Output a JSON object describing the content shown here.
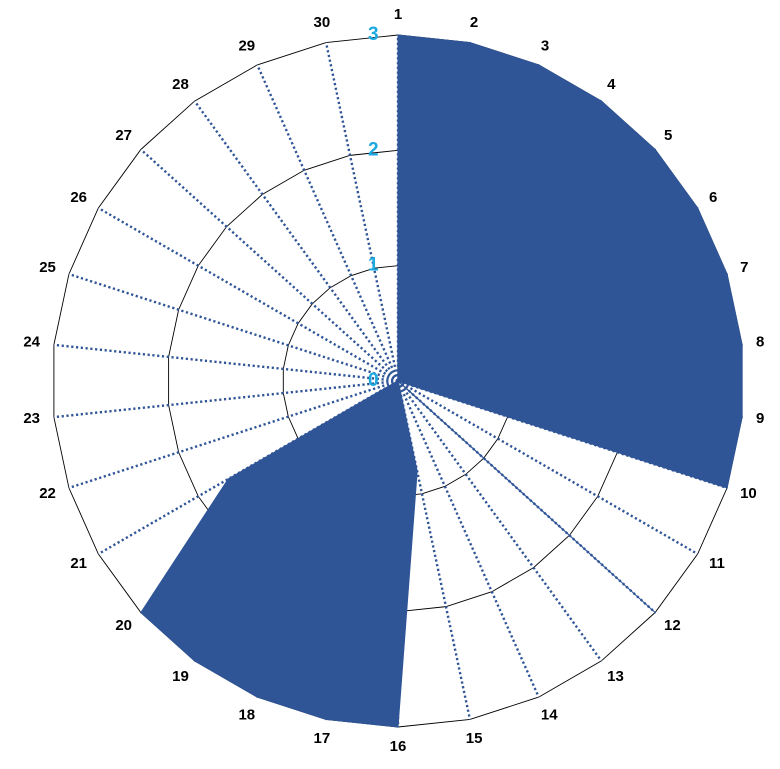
{
  "chart_data": {
    "type": "radar",
    "categories": [
      "1",
      "2",
      "3",
      "4",
      "5",
      "6",
      "7",
      "8",
      "9",
      "10",
      "11",
      "12",
      "13",
      "14",
      "15",
      "16",
      "17",
      "18",
      "19",
      "20",
      "21",
      "22",
      "23",
      "24",
      "25",
      "26",
      "27",
      "28",
      "29",
      "30"
    ],
    "series": [
      {
        "values": [
          3,
          3,
          3,
          3,
          3,
          3,
          3,
          3,
          3,
          3,
          0.01,
          3,
          0.01,
          0.01,
          0.8,
          3,
          3,
          3,
          3,
          3,
          1.7,
          0.01,
          0.01,
          0.01,
          0.01,
          0.01,
          0.01,
          0.01,
          0.01,
          0.01
        ]
      }
    ],
    "radial_ticks": [
      "0",
      "1",
      "2",
      "3"
    ],
    "rmin": 0,
    "rmax": 3,
    "series_color": "#2F5597",
    "spoke_color": "#2F5597",
    "tick_label_color": "#1BA9E0",
    "grid": true,
    "legend": "none"
  }
}
